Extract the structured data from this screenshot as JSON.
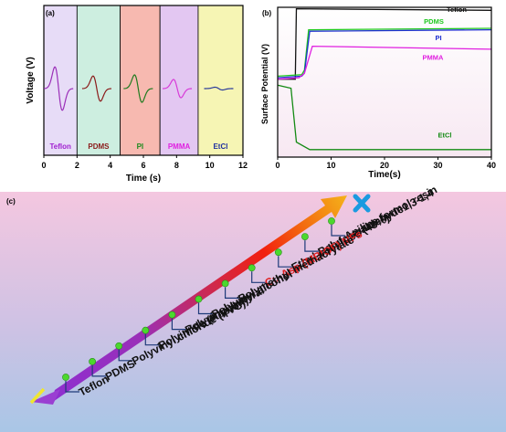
{
  "panel_a": {
    "label": "(a)",
    "ylabel": "Voltage (V)",
    "xlabel": "Time (s)",
    "xticks": [
      "0",
      "2",
      "4",
      "6",
      "8",
      "10",
      "12"
    ],
    "bands": [
      {
        "name": "Teflon",
        "color": "#e7dcf7",
        "text_color": "#a020d0",
        "line_color": "#9b2fb8"
      },
      {
        "name": "PDMS",
        "color": "#cdeee0",
        "text_color": "#8b1a1a",
        "line_color": "#8b1a1a"
      },
      {
        "name": "PI",
        "color": "#f7b9b0",
        "text_color": "#1e8a1e",
        "line_color": "#1e7a1e"
      },
      {
        "name": "PMMA",
        "color": "#e3c7f2",
        "text_color": "#e020e0",
        "line_color": "#d83ad8"
      },
      {
        "name": "EtCl",
        "color": "#f6f5b4",
        "text_color": "#1f2f9f",
        "line_color": "#2a3a9a"
      }
    ]
  },
  "chart_data": {
    "type": "line",
    "title": "",
    "xlabel": "Time(s)",
    "ylabel": "Surface Potential (V)",
    "xlim": [
      0,
      40
    ],
    "xticks": [
      0,
      10,
      20,
      30,
      40
    ],
    "series": [
      {
        "name": "Teflon",
        "color": "#111111",
        "x": [
          0,
          3,
          3.3,
          3.5,
          40
        ],
        "y": [
          0.52,
          0.52,
          0.52,
          0.99,
          0.98
        ]
      },
      {
        "name": "PDMS",
        "color": "#1ec81e",
        "x": [
          0,
          4.5,
          5,
          5.8,
          40
        ],
        "y": [
          0.54,
          0.55,
          0.58,
          0.85,
          0.86
        ]
      },
      {
        "name": "PI",
        "color": "#1f2fd0",
        "x": [
          0,
          4.5,
          5,
          6,
          40
        ],
        "y": [
          0.53,
          0.54,
          0.56,
          0.84,
          0.85
        ]
      },
      {
        "name": "PMMA",
        "color": "#e020e0",
        "x": [
          0,
          4,
          5,
          6.5,
          40
        ],
        "y": [
          0.52,
          0.53,
          0.56,
          0.74,
          0.72
        ]
      },
      {
        "name": "EtCl",
        "color": "#138a13",
        "x": [
          0,
          2.5,
          3.5,
          6,
          40
        ],
        "y": [
          0.48,
          0.46,
          0.1,
          0.05,
          0.05
        ]
      }
    ]
  },
  "panel_b": {
    "label": "(b)"
  },
  "panel_c": {
    "label": "(c)",
    "materials": [
      {
        "name": "Aniline formol resin",
        "highlight": false
      },
      {
        "name": "Polyformaldehyde1,3-1,4",
        "highlight": false
      },
      {
        "name": "Ethyl cellulose (48%)",
        "highlight": false
      },
      {
        "name": "Cu-Asp (MBIOF) NFs",
        "highlight": true
      },
      {
        "name": "Polymethyl methacrylate",
        "highlight": false
      },
      {
        "name": "Polyvinyl alcohol",
        "highlight": false
      },
      {
        "name": "Polyvinyl butyral",
        "highlight": false
      },
      {
        "name": "Polyimide (Kapton)",
        "highlight": false
      },
      {
        "name": "Polyvinyl chloride (PVC)",
        "highlight": false
      },
      {
        "name": "PDMS",
        "highlight": false
      },
      {
        "name": "Teflon",
        "highlight": false
      }
    ],
    "plus_symbol": "+",
    "minus_symbol": "−",
    "highlight_color": "#e01e1e"
  }
}
